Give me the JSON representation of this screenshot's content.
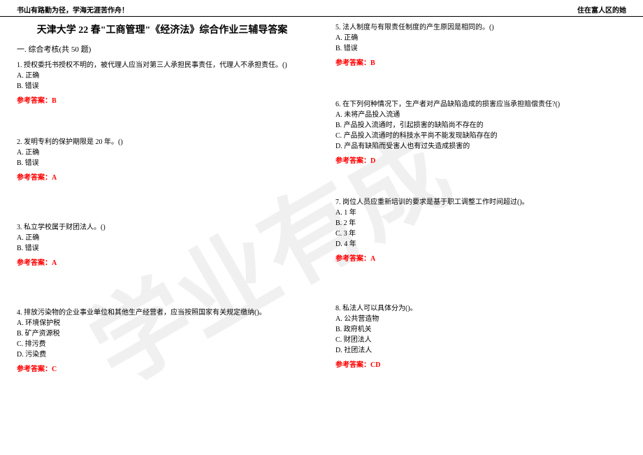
{
  "header": {
    "left": "书山有路勤为径，学海无涯苦作舟！",
    "right": "住在富人区的她"
  },
  "title": "天津大学 22 春\"工商管理\"《经济法》综合作业三辅导答案",
  "section": "一. 综合考核(共 50 题)",
  "answer_label": "参考答案：",
  "left_questions": [
    {
      "num": "1.",
      "text": "授权委托书授权不明的，被代理人应当对第三人承担民事责任，代理人不承担责任。()",
      "options": [
        "A. 正确",
        "B. 错误"
      ],
      "answer": "B",
      "gap_after": "gap-med"
    },
    {
      "num": "2.",
      "text": "发明专利的保护期限是 20 年。()",
      "options": [
        "A. 正确",
        "B. 错误"
      ],
      "answer": "A",
      "gap_after": "gap-large"
    },
    {
      "num": "3.",
      "text": "私立学校属于财团法人。()",
      "options": [
        "A. 正确",
        "B. 错误"
      ],
      "answer": "A",
      "gap_after": "gap-large"
    },
    {
      "num": "4.",
      "text": "排放污染物的企业事业单位和其他生产经营者，应当按照国家有关规定缴纳()。",
      "options": [
        "A. 环境保护税",
        "B. 矿产资源税",
        "C. 排污费",
        "D. 污染费"
      ],
      "answer": "C",
      "gap_after": ""
    }
  ],
  "right_questions": [
    {
      "num": "5.",
      "text": "法人制度与有限责任制度的产生原因是相同的。()",
      "options": [
        "A. 正确",
        "B. 错误"
      ],
      "answer": "B",
      "gap_after": "gap-med"
    },
    {
      "num": "6.",
      "text": "在下列何种情况下，生产者对产品缺陷造成的损害应当承担赔偿责任?()",
      "options": [
        "A. 未将产品投入流通",
        "B. 产品投入流通时，引起损害的缺陷尚不存在的",
        "C. 产品投入流通时的科技水平尚不能发现缺陷存在的",
        "D. 产品有缺陷而受害人也有过失造成损害的"
      ],
      "answer": "D",
      "gap_after": "gap-med"
    },
    {
      "num": "7.",
      "text": "岗位人员应重新培训的要求是基于职工调整工作时间超过()。",
      "options": [
        "A. 1 年",
        "B. 2 年",
        "C. 3 年",
        "D. 4 年"
      ],
      "answer": "A",
      "gap_after": "gap-large"
    },
    {
      "num": "8.",
      "text": "私法人可以具体分为()。",
      "options": [
        "A. 公共营造物",
        "B. 政府机关",
        "C. 财团法人",
        "D. 社团法人"
      ],
      "answer": "CD",
      "gap_after": ""
    }
  ],
  "watermark": "学业有成"
}
